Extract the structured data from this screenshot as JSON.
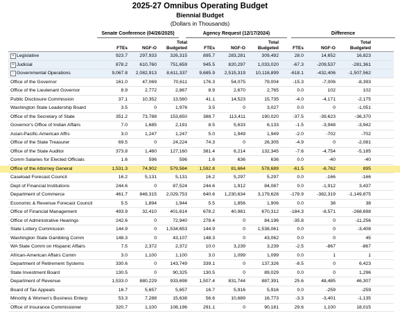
{
  "header": {
    "title": "2025-27 Omnibus Operating Budget",
    "subtitle": "Biennial Budget",
    "units": "(Dollars in Thousands)"
  },
  "groups": {
    "senate": "Senate Conference (04/26/2025)",
    "agency": "Agency Request (12/17/2024)",
    "difference": "Difference"
  },
  "columns": {
    "ftes": "FTEs",
    "ngfo": "NGF-O",
    "total_line1": "Total",
    "total_line2": "Budgeted"
  },
  "rows": [
    {
      "name": "Legislative",
      "expand": "+",
      "blue": true,
      "v": [
        "923.7",
        "297,933",
        "326,315",
        "895.7",
        "283,281",
        "309,492",
        "28.0",
        "14,652",
        "16,823"
      ]
    },
    {
      "name": "Judicial",
      "expand": "+",
      "blue": true,
      "v": [
        "878.2",
        "610,760",
        "751,659",
        "945.5",
        "820,297",
        "1,033,020",
        "-67.3",
        "-209,537",
        "-281,361"
      ]
    },
    {
      "name": "Governmental Operations",
      "expand": "-",
      "blue": true,
      "v": [
        "9,067.8",
        "2,082,913",
        "8,611,337",
        "9,685.9",
        "2,515,319",
        "10,118,899",
        "-618.1",
        "-432,406",
        "-1,507,562"
      ]
    },
    {
      "name": "Office of the Governor",
      "v": [
        "161.0",
        "47,069",
        "70,611",
        "176.3",
        "54,075",
        "79,004",
        "-15.3",
        "-7,006",
        "-8,393"
      ]
    },
    {
      "name": "Office of the Lieutenant Governor",
      "v": [
        "8.9",
        "2,772",
        "2,867",
        "8.9",
        "2,670",
        "2,765",
        "0.0",
        "102",
        "102"
      ]
    },
    {
      "name": "Public Disclosure Commission",
      "v": [
        "37.1",
        "10,352",
        "13,560",
        "41.1",
        "14,523",
        "15,735",
        "-4.0",
        "-4,171",
        "-2,175"
      ]
    },
    {
      "name": "Washington State Leadership Board",
      "v": [
        "3.5",
        "0",
        "1,976",
        "3.5",
        "0",
        "3,027",
        "0.0",
        "0",
        "-1,051"
      ]
    },
    {
      "name": "Office of the Secretary of State",
      "v": [
        "351.2",
        "73,788",
        "153,650",
        "388.7",
        "113,411",
        "190,020",
        "-37.5",
        "-39,623",
        "-36,370"
      ]
    },
    {
      "name": "Governor's Office of Indian Affairs",
      "v": [
        "7.0",
        "1,685",
        "2,191",
        "8.5",
        "5,633",
        "6,133",
        "-1.5",
        "-3,948",
        "-3,942"
      ]
    },
    {
      "name": "Asian-Pacific-American Affrs",
      "v": [
        "3.0",
        "1,247",
        "1,247",
        "5.0",
        "1,949",
        "1,949",
        "-2.0",
        "-702",
        "-702"
      ]
    },
    {
      "name": "Office of the State Treasurer",
      "v": [
        "69.5",
        "0",
        "24,224",
        "74.3",
        "0",
        "26,305",
        "-4.9",
        "0",
        "-2,081"
      ]
    },
    {
      "name": "Office of the State Auditor",
      "v": [
        "373.8",
        "1,460",
        "127,160",
        "381.4",
        "6,214",
        "132,345",
        "-7.6",
        "-4,754",
        "-5,185"
      ]
    },
    {
      "name": "Comm Salaries for Elected Officials",
      "v": [
        "1.6",
        "596",
        "596",
        "1.6",
        "636",
        "636",
        "0.0",
        "-40",
        "-40"
      ]
    },
    {
      "name": "Office of the Attorney General",
      "hl": true,
      "v": [
        "1,531.3",
        "74,902",
        "579,584",
        "1,592.8",
        "81,664",
        "578,689",
        "-61.5",
        "-6,762",
        "895"
      ]
    },
    {
      "name": "Caseload Forecast Council",
      "v": [
        "16.2",
        "5,131",
        "5,131",
        "16.2",
        "5,297",
        "5,297",
        "0.0",
        "-166",
        "-166"
      ]
    },
    {
      "name": "Dept of Financial Institutions",
      "v": [
        "244.6",
        "0",
        "87,524",
        "244.6",
        "1,912",
        "84,087",
        "0.0",
        "-1,912",
        "3,437"
      ]
    },
    {
      "name": "Department of Commerce",
      "v": [
        "461.7",
        "848,315",
        "2,029,753",
        "640.6",
        "1,230,634",
        "3,179,628",
        "-178.9",
        "-382,319",
        "-1,149,875"
      ]
    },
    {
      "name": "Economic & Revenue Forecast Council",
      "v": [
        "5.5",
        "1,894",
        "1,944",
        "5.5",
        "1,856",
        "1,906",
        "0.0",
        "38",
        "38"
      ]
    },
    {
      "name": "Office of Financial Management",
      "v": [
        "493.9",
        "32,410",
        "401,614",
        "678.2",
        "40,981",
        "670,312",
        "-184.3",
        "-8,571",
        "-268,698"
      ]
    },
    {
      "name": "Office of Administrative Hearings",
      "v": [
        "242.6",
        "0",
        "72,940",
        "278.4",
        "0",
        "84,196",
        "-35.8",
        "0",
        "-11,256"
      ]
    },
    {
      "name": "State Lottery Commission",
      "v": [
        "144.9",
        "0",
        "1,534,653",
        "144.9",
        "0",
        "1,538,061",
        "0.0",
        "0",
        "-3,408"
      ]
    },
    {
      "name": "Washington State Gambling Comm",
      "v": [
        "148.3",
        "0",
        "43,107",
        "148.3",
        "0",
        "43,062",
        "0.0",
        "0",
        "45"
      ]
    },
    {
      "name": "WA State Comm on Hispanic Affairs",
      "v": [
        "7.5",
        "2,372",
        "2,372",
        "10.0",
        "3,239",
        "3,239",
        "-2.5",
        "-867",
        "-867"
      ]
    },
    {
      "name": "African-American Affairs Comm",
      "v": [
        "3.0",
        "1,100",
        "1,100",
        "3.0",
        "1,099",
        "1,099",
        "0.0",
        "1",
        "1"
      ]
    },
    {
      "name": "Department of Retirement Systems",
      "v": [
        "330.6",
        "0",
        "143,749",
        "339.1",
        "0",
        "137,326",
        "-8.5",
        "0",
        "6,423"
      ]
    },
    {
      "name": "State Investment Board",
      "v": [
        "130.5",
        "0",
        "90,325",
        "130.5",
        "0",
        "89,029",
        "0.0",
        "0",
        "1,296"
      ]
    },
    {
      "name": "Department of Revenue",
      "v": [
        "1,533.0",
        "880,229",
        "933,698",
        "1,507.4",
        "831,744",
        "887,391",
        "25.6",
        "48,485",
        "46,307"
      ]
    },
    {
      "name": "Board of Tax Appeals",
      "v": [
        "16.7",
        "5,657",
        "5,657",
        "16.7",
        "5,916",
        "5,916",
        "0.0",
        "-259",
        "-259"
      ]
    },
    {
      "name": "Minority & Women's Business Enterp",
      "v": [
        "53.3",
        "7,288",
        "15,638",
        "56.6",
        "10,689",
        "16,773",
        "-3.3",
        "-3,401",
        "-1,135"
      ]
    },
    {
      "name": "Office of Insurance Commissioner",
      "v": [
        "320.7",
        "1,100",
        "108,196",
        "291.1",
        "0",
        "90,181",
        "29.6",
        "1,100",
        "18,015"
      ]
    }
  ]
}
